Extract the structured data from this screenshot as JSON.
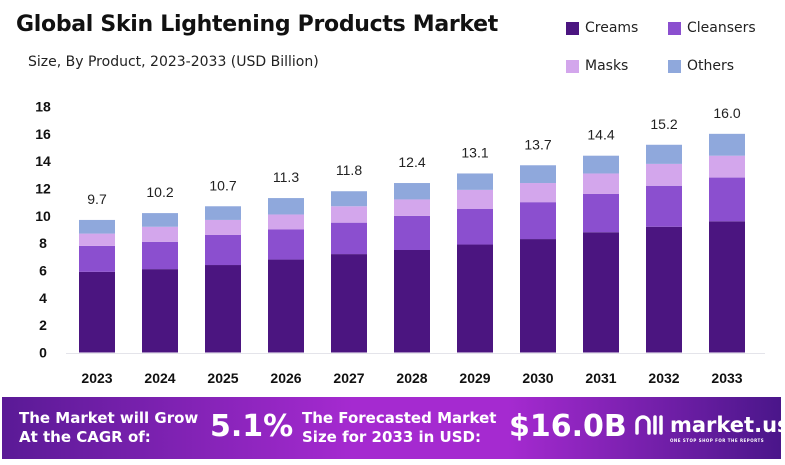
{
  "chart_data": {
    "type": "bar",
    "stacked": true,
    "title": "Global Skin Lightening Products Market",
    "subtitle": "Size, By Product, 2023-2033 (USD Billion)",
    "categories": [
      "2023",
      "2024",
      "2025",
      "2026",
      "2027",
      "2028",
      "2029",
      "2030",
      "2031",
      "2032",
      "2033"
    ],
    "series": [
      {
        "name": "Creams",
        "color": "#4b1580",
        "values": [
          5.9,
          6.1,
          6.4,
          6.8,
          7.2,
          7.5,
          7.9,
          8.3,
          8.8,
          9.2,
          9.6
        ]
      },
      {
        "name": "Cleansers",
        "color": "#8b4fcf",
        "values": [
          1.9,
          2.0,
          2.2,
          2.2,
          2.3,
          2.5,
          2.6,
          2.7,
          2.8,
          3.0,
          3.2
        ]
      },
      {
        "name": "Masks",
        "color": "#d3a6ec",
        "values": [
          0.9,
          1.1,
          1.1,
          1.1,
          1.2,
          1.2,
          1.4,
          1.4,
          1.5,
          1.6,
          1.6
        ]
      },
      {
        "name": "Others",
        "color": "#8fa8dc",
        "values": [
          1.0,
          1.0,
          1.0,
          1.2,
          1.1,
          1.2,
          1.2,
          1.3,
          1.3,
          1.4,
          1.6
        ]
      }
    ],
    "totals": [
      "9.7",
      "10.2",
      "10.7",
      "11.3",
      "11.8",
      "12.4",
      "13.1",
      "13.7",
      "14.4",
      "15.2",
      "16.0"
    ],
    "ylim": [
      0,
      18
    ],
    "yticks": [
      0,
      2,
      4,
      6,
      8,
      10,
      12,
      14,
      16,
      18
    ],
    "grid": false,
    "legend_position": "top-right"
  },
  "banner": {
    "cagr_label_1": "The Market will Grow",
    "cagr_label_2": "At the CAGR of:",
    "cagr_value": "5.1%",
    "forecast_label_1": "The Forecasted Market",
    "forecast_label_2": "Size for 2033 in USD:",
    "forecast_value": "$16.0B",
    "logo_text": "market.us",
    "logo_tagline": "ONE STOP SHOP FOR THE REPORTS"
  }
}
